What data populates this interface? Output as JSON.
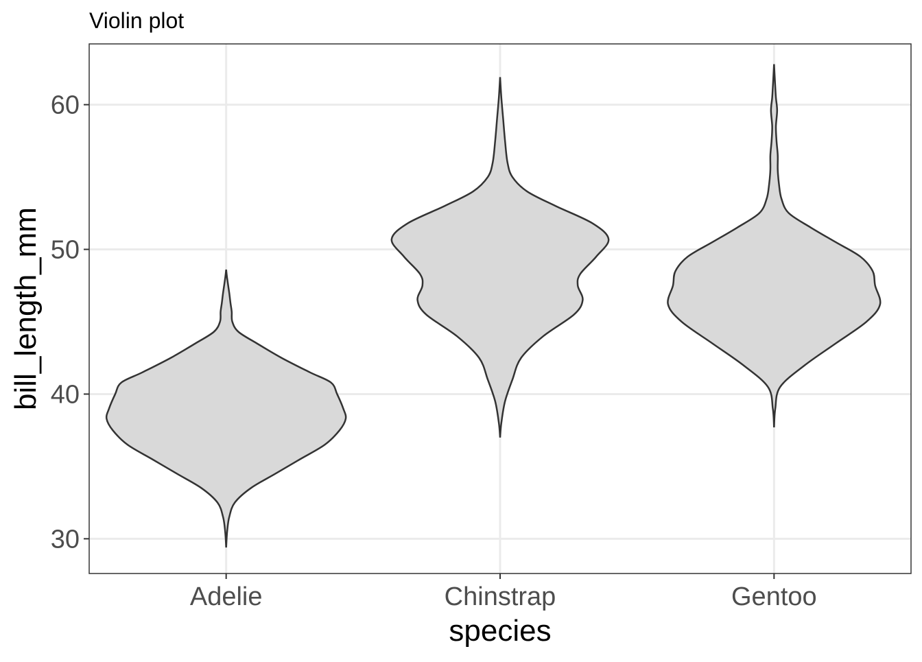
{
  "chart_data": {
    "type": "violin",
    "title": "Violin plot",
    "xlabel": "species",
    "ylabel": "bill_length_mm",
    "ylim": [
      27.6,
      64.2
    ],
    "yticks": [
      30,
      40,
      50,
      60
    ],
    "grid": true,
    "categories": [
      "Adelie",
      "Chinstrap",
      "Gentoo"
    ],
    "violins": [
      {
        "name": "Adelie",
        "min": 32.1,
        "max": 46.0,
        "profile": [
          [
            29.4,
            0.0
          ],
          [
            30.5,
            0.008
          ],
          [
            31.5,
            0.025
          ],
          [
            32.5,
            0.07
          ],
          [
            33.5,
            0.2
          ],
          [
            34.5,
            0.4
          ],
          [
            35.5,
            0.6
          ],
          [
            36.5,
            0.8
          ],
          [
            37.5,
            0.92
          ],
          [
            38.3,
            0.97
          ],
          [
            39.0,
            0.95
          ],
          [
            40.0,
            0.9
          ],
          [
            40.8,
            0.85
          ],
          [
            41.5,
            0.68
          ],
          [
            42.5,
            0.45
          ],
          [
            43.5,
            0.25
          ],
          [
            44.3,
            0.1
          ],
          [
            45.0,
            0.05
          ],
          [
            45.7,
            0.045
          ],
          [
            46.3,
            0.035
          ],
          [
            47.0,
            0.025
          ],
          [
            48.0,
            0.008
          ],
          [
            48.6,
            0.0
          ]
        ]
      },
      {
        "name": "Chinstrap",
        "min": 40.9,
        "max": 58.0,
        "profile": [
          [
            37.0,
            0.0
          ],
          [
            38.0,
            0.01
          ],
          [
            39.5,
            0.04
          ],
          [
            41.0,
            0.1
          ],
          [
            42.5,
            0.17
          ],
          [
            44.0,
            0.35
          ],
          [
            45.5,
            0.6
          ],
          [
            46.5,
            0.67
          ],
          [
            47.5,
            0.63
          ],
          [
            48.3,
            0.65
          ],
          [
            49.5,
            0.78
          ],
          [
            50.7,
            0.88
          ],
          [
            51.8,
            0.75
          ],
          [
            53.0,
            0.45
          ],
          [
            54.0,
            0.22
          ],
          [
            55.0,
            0.1
          ],
          [
            56.0,
            0.06
          ],
          [
            57.5,
            0.04
          ],
          [
            59.0,
            0.025
          ],
          [
            60.5,
            0.01
          ],
          [
            61.9,
            0.0
          ]
        ]
      },
      {
        "name": "Gentoo",
        "min": 40.9,
        "max": 59.6,
        "profile": [
          [
            37.7,
            0.0
          ],
          [
            39.0,
            0.01
          ],
          [
            40.5,
            0.05
          ],
          [
            42.0,
            0.25
          ],
          [
            43.5,
            0.5
          ],
          [
            45.0,
            0.75
          ],
          [
            46.2,
            0.86
          ],
          [
            47.5,
            0.82
          ],
          [
            48.5,
            0.8
          ],
          [
            49.5,
            0.7
          ],
          [
            50.5,
            0.5
          ],
          [
            51.5,
            0.3
          ],
          [
            52.5,
            0.12
          ],
          [
            53.5,
            0.06
          ],
          [
            54.5,
            0.04
          ],
          [
            55.5,
            0.03
          ],
          [
            56.5,
            0.03
          ],
          [
            57.5,
            0.02
          ],
          [
            58.5,
            0.015
          ],
          [
            59.6,
            0.025
          ],
          [
            60.5,
            0.015
          ],
          [
            61.5,
            0.008
          ],
          [
            62.8,
            0.0
          ]
        ]
      }
    ]
  }
}
